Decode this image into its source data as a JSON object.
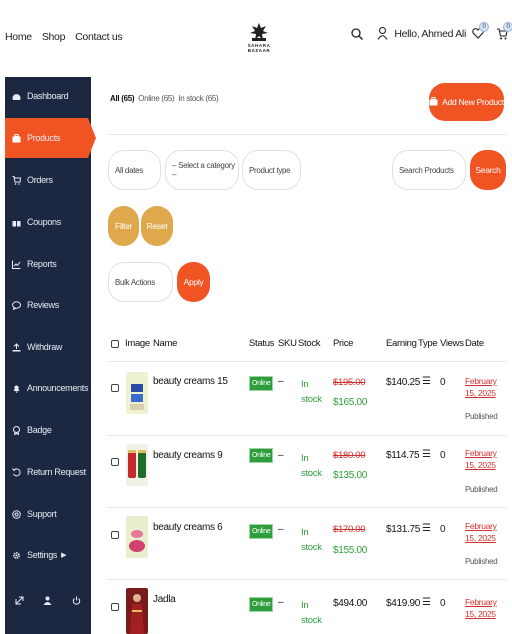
{
  "topnav": {
    "home": "Home",
    "shop": "Shop",
    "contact": "Contact us"
  },
  "logo": {
    "text": "SAHARA BAZAAR"
  },
  "user": {
    "greeting": "Hello, Ahmed Ali",
    "wishlist_count": "0",
    "cart_count": "0"
  },
  "sidebar": {
    "items": [
      {
        "label": "Dashboard",
        "icon": "dashboard-icon"
      },
      {
        "label": "Products",
        "icon": "briefcase-icon",
        "active": true
      },
      {
        "label": "Orders",
        "icon": "cart-icon"
      },
      {
        "label": "Coupons",
        "icon": "gift-icon"
      },
      {
        "label": "Reports",
        "icon": "chart-icon"
      },
      {
        "label": "Reviews",
        "icon": "comment-icon"
      },
      {
        "label": "Withdraw",
        "icon": "upload-icon"
      },
      {
        "label": "Announcements",
        "icon": "bell-icon"
      },
      {
        "label": "Badge",
        "icon": "badge-icon"
      },
      {
        "label": "Return Request",
        "icon": "return-icon"
      },
      {
        "label": "Support",
        "icon": "support-icon"
      },
      {
        "label": "Settings",
        "icon": "gear-icon"
      }
    ]
  },
  "filters": {
    "all": "All (65)",
    "online": "Online (65)",
    "instock": "In stock (65)",
    "add_new": "Add New Product",
    "dates": "All dates",
    "category": "– Select a category –",
    "product_type": "Product type",
    "search_placeholder": "Search Products",
    "search_btn": "Search",
    "filter_btn": "Filter",
    "reset_btn": "Reset",
    "bulk": "Bulk Actions",
    "apply": "Apply"
  },
  "table": {
    "headers": {
      "image": "Image",
      "name": "Name",
      "status": "Status",
      "sku": "SKU",
      "stock": "Stock",
      "price": "Price",
      "earning": "Earning",
      "type": "Type",
      "views": "Views",
      "date": "Date"
    },
    "rows": [
      {
        "name": "beauty creams 15",
        "status": "Online",
        "sku": "–",
        "stock": "In stock",
        "old_price": "$195.00",
        "price": "$165.00",
        "earning": "$140.25",
        "type": "☰",
        "views": "0",
        "date": "February 15, 2025",
        "published": "Published"
      },
      {
        "name": "beauty creams 9",
        "status": "Online",
        "sku": "–",
        "stock": "In stock",
        "old_price": "$180.00",
        "price": "$135.00",
        "earning": "$114.75",
        "type": "☰",
        "views": "0",
        "date": "February 15, 2025",
        "published": "Published"
      },
      {
        "name": "beauty creams 6",
        "status": "Online",
        "sku": "–",
        "stock": "In stock",
        "old_price": "$170.00",
        "price": "$155.00",
        "earning": "$131.75",
        "type": "☰",
        "views": "0",
        "date": "February 15, 2025",
        "published": "Published"
      },
      {
        "name": "Jadla",
        "status": "Online",
        "sku": "–",
        "stock": "In stock",
        "old_price": "",
        "price": "$494.00",
        "earning": "$419.90",
        "type": "☰",
        "views": "0",
        "date": "February 15, 2025",
        "published": ""
      }
    ]
  },
  "colors": {
    "accent": "#f05423",
    "sidebar": "#1c2842",
    "tan": "#e0a84c",
    "green": "#2e9e3c",
    "red": "#d32f2f"
  }
}
